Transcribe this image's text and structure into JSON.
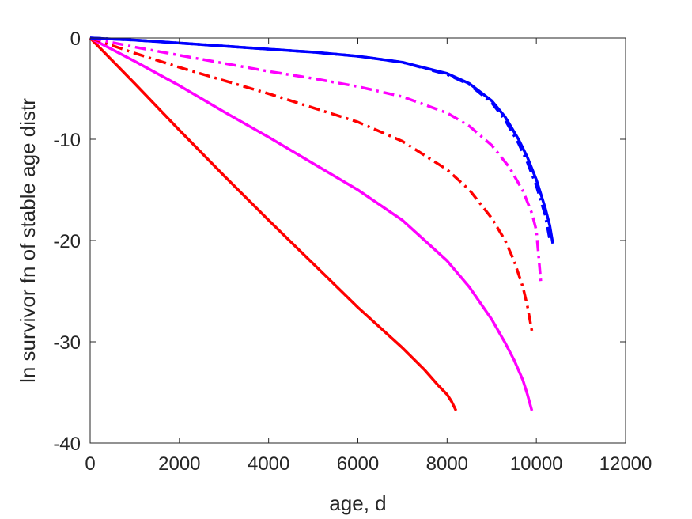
{
  "chart_data": {
    "type": "line",
    "title": "",
    "xlabel": "age, d",
    "ylabel": "ln survivor fn of stable age distr",
    "xlim": [
      0,
      12000
    ],
    "ylim": [
      -40,
      0
    ],
    "xticks": [
      0,
      2000,
      4000,
      6000,
      8000,
      10000,
      12000
    ],
    "yticks": [
      0,
      -10,
      -20,
      -30,
      -40
    ],
    "grid": false,
    "legend": "none",
    "box": true,
    "series": [
      {
        "color": "#ff0000",
        "style": "solid",
        "x": [
          0,
          1000,
          2000,
          3000,
          4000,
          5000,
          6000,
          7000,
          7500,
          7800,
          8000,
          8100,
          8200
        ],
        "y": [
          0,
          -4.5,
          -9.1,
          -13.6,
          -18.0,
          -22.3,
          -26.6,
          -30.6,
          -32.8,
          -34.3,
          -35.2,
          -35.9,
          -36.8
        ]
      },
      {
        "color": "#ff00ff",
        "style": "solid",
        "x": [
          0,
          1000,
          2000,
          3000,
          4000,
          5000,
          6000,
          7000,
          8000,
          8500,
          9000,
          9300,
          9500,
          9700,
          9800,
          9900
        ],
        "y": [
          0,
          -2.3,
          -4.7,
          -7.3,
          -9.8,
          -12.4,
          -15.0,
          -18.0,
          -22.0,
          -24.6,
          -27.8,
          -30.1,
          -31.8,
          -33.8,
          -35.2,
          -36.8
        ]
      },
      {
        "color": "#ff0000",
        "style": "dashdot",
        "x": [
          0,
          1000,
          2000,
          3000,
          4000,
          5000,
          6000,
          7000,
          8000,
          8500,
          9000,
          9300,
          9500,
          9700,
          9800,
          9900
        ],
        "y": [
          0,
          -1.5,
          -2.9,
          -4.2,
          -5.5,
          -6.9,
          -8.3,
          -10.2,
          -13.0,
          -15.0,
          -17.8,
          -20.0,
          -22.0,
          -24.6,
          -26.5,
          -28.9
        ]
      },
      {
        "color": "#ff00ff",
        "style": "dashdot",
        "x": [
          0,
          1000,
          2000,
          3000,
          4000,
          5000,
          6000,
          7000,
          8000,
          8500,
          9000,
          9400,
          9700,
          9900,
          10000,
          10100
        ],
        "y": [
          0,
          -0.9,
          -1.7,
          -2.5,
          -3.3,
          -4.0,
          -4.8,
          -5.8,
          -7.4,
          -8.7,
          -10.6,
          -12.8,
          -15.1,
          -17.3,
          -19.0,
          -24.0
        ]
      },
      {
        "color": "#0000ff",
        "style": "solid",
        "x": [
          0,
          1000,
          2000,
          3000,
          4000,
          5000,
          6000,
          7000,
          8000,
          8500,
          9000,
          9300,
          9600,
          9800,
          10000,
          10200,
          10300,
          10370
        ],
        "y": [
          0,
          -0.2,
          -0.5,
          -0.8,
          -1.1,
          -1.4,
          -1.8,
          -2.4,
          -3.5,
          -4.5,
          -6.2,
          -7.8,
          -10.0,
          -11.8,
          -14.0,
          -16.8,
          -18.5,
          -20.3
        ]
      },
      {
        "color": "#0000ff",
        "style": "dashdot",
        "x": [
          0,
          1000,
          2000,
          3000,
          4000,
          5000,
          6000,
          7000,
          8000,
          8500,
          9000,
          9300,
          9600,
          9800,
          10000,
          10200,
          10300
        ],
        "y": [
          0,
          -0.2,
          -0.5,
          -0.8,
          -1.1,
          -1.4,
          -1.8,
          -2.4,
          -3.6,
          -4.6,
          -6.4,
          -8.1,
          -10.4,
          -12.3,
          -14.6,
          -17.5,
          -19.9
        ]
      }
    ]
  }
}
